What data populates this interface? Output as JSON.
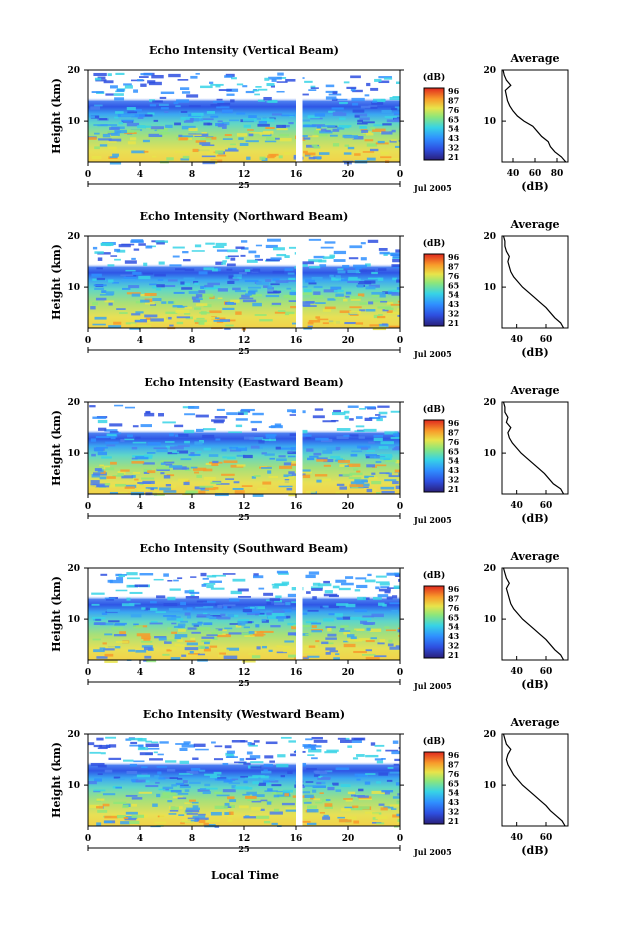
{
  "figure": {
    "bottom_xlabel": "Local Time",
    "date_label": "Jul 2005",
    "day_label": "25",
    "height_label": "Height (km)",
    "avg_title": "Average",
    "avg_xlabel": "(dB)",
    "cbar_title": "(dB)"
  },
  "chart_data": [
    {
      "type": "heatmap",
      "title": "Echo Intensity (Vertical Beam)",
      "xlabel": "Local Time",
      "ylabel": "Height (km)",
      "x_ticks": [
        "0",
        "4",
        "8",
        "12",
        "16",
        "20",
        "0"
      ],
      "y_ticks": [
        "10",
        "20"
      ],
      "xlim": [
        0,
        24
      ],
      "ylim": [
        2,
        20
      ],
      "data_gap": [
        16.0,
        16.5
      ],
      "colorbar": {
        "label": "(dB)",
        "ticks": [
          "96",
          "87",
          "76",
          "65",
          "54",
          "43",
          "32",
          "21"
        ],
        "range": [
          21,
          96
        ]
      },
      "profile": {
        "title": "Average",
        "xlabel": "(dB)",
        "x_ticks": [
          "40",
          "60",
          "80"
        ],
        "xlim": [
          30,
          90
        ],
        "y_ticks": [
          "10",
          "20"
        ],
        "ylim": [
          2,
          20
        ],
        "heights": [
          2,
          3,
          4,
          5,
          6,
          7,
          8,
          9,
          10,
          11,
          12,
          13,
          14,
          15,
          16,
          17,
          18,
          19,
          20
        ],
        "values": [
          88,
          84,
          78,
          74,
          72,
          66,
          62,
          58,
          50,
          44,
          40,
          37,
          35,
          34,
          33,
          38,
          34,
          32,
          31
        ]
      }
    },
    {
      "type": "heatmap",
      "title": "Echo Intensity (Northward Beam)",
      "xlabel": "Local Time",
      "ylabel": "Height (km)",
      "x_ticks": [
        "0",
        "4",
        "8",
        "12",
        "16",
        "20",
        "0"
      ],
      "y_ticks": [
        "10",
        "20"
      ],
      "xlim": [
        0,
        24
      ],
      "ylim": [
        2,
        20
      ],
      "data_gap": [
        16.0,
        16.5
      ],
      "colorbar": {
        "label": "(dB)",
        "ticks": [
          "96",
          "87",
          "76",
          "65",
          "54",
          "43",
          "32",
          "21"
        ],
        "range": [
          21,
          96
        ]
      },
      "profile": {
        "title": "Average",
        "xlabel": "(dB)",
        "x_ticks": [
          "40",
          "60"
        ],
        "xlim": [
          30,
          75
        ],
        "y_ticks": [
          "10",
          "20"
        ],
        "ylim": [
          2,
          20
        ],
        "heights": [
          2,
          3,
          4,
          5,
          6,
          7,
          8,
          9,
          10,
          11,
          12,
          13,
          14,
          15,
          16,
          17,
          18,
          19,
          20
        ],
        "values": [
          72,
          70,
          66,
          63,
          60,
          56,
          52,
          48,
          44,
          41,
          38,
          36,
          35,
          34,
          35,
          33,
          32,
          32,
          31
        ]
      }
    },
    {
      "type": "heatmap",
      "title": "Echo Intensity (Eastward Beam)",
      "xlabel": "Local Time",
      "ylabel": "Height (km)",
      "x_ticks": [
        "0",
        "4",
        "8",
        "12",
        "16",
        "20",
        "0"
      ],
      "y_ticks": [
        "10",
        "20"
      ],
      "xlim": [
        0,
        24
      ],
      "ylim": [
        2,
        20
      ],
      "data_gap": [
        16.0,
        16.5
      ],
      "colorbar": {
        "label": "(dB)",
        "ticks": [
          "96",
          "87",
          "76",
          "65",
          "54",
          "43",
          "32",
          "21"
        ],
        "range": [
          21,
          96
        ]
      },
      "profile": {
        "title": "Average",
        "xlabel": "(dB)",
        "x_ticks": [
          "40",
          "60"
        ],
        "xlim": [
          30,
          75
        ],
        "y_ticks": [
          "10",
          "20"
        ],
        "ylim": [
          2,
          20
        ],
        "heights": [
          2,
          3,
          4,
          5,
          6,
          7,
          8,
          9,
          10,
          11,
          12,
          13,
          14,
          15,
          16,
          17,
          18,
          19,
          20
        ],
        "values": [
          72,
          70,
          65,
          62,
          59,
          55,
          51,
          47,
          43,
          40,
          37,
          35,
          34,
          36,
          33,
          34,
          32,
          32,
          31
        ]
      }
    },
    {
      "type": "heatmap",
      "title": "Echo Intensity (Southward Beam)",
      "xlabel": "Local Time",
      "ylabel": "Height (km)",
      "x_ticks": [
        "0",
        "4",
        "8",
        "12",
        "16",
        "20",
        "0"
      ],
      "y_ticks": [
        "10",
        "20"
      ],
      "xlim": [
        0,
        24
      ],
      "ylim": [
        2,
        20
      ],
      "data_gap": [
        16.0,
        16.5
      ],
      "colorbar": {
        "label": "(dB)",
        "ticks": [
          "96",
          "87",
          "76",
          "65",
          "54",
          "43",
          "32",
          "21"
        ],
        "range": [
          21,
          96
        ]
      },
      "profile": {
        "title": "Average",
        "xlabel": "(dB)",
        "x_ticks": [
          "40",
          "60"
        ],
        "xlim": [
          30,
          75
        ],
        "y_ticks": [
          "10",
          "20"
        ],
        "ylim": [
          2,
          20
        ],
        "heights": [
          2,
          3,
          4,
          5,
          6,
          7,
          8,
          9,
          10,
          11,
          12,
          13,
          14,
          15,
          16,
          17,
          18,
          19,
          20
        ],
        "values": [
          72,
          70,
          66,
          63,
          60,
          56,
          52,
          48,
          44,
          41,
          38,
          36,
          35,
          34,
          33,
          35,
          33,
          32,
          31
        ]
      }
    },
    {
      "type": "heatmap",
      "title": "Echo Intensity (Westward Beam)",
      "xlabel": "Local Time",
      "ylabel": "Height (km)",
      "x_ticks": [
        "0",
        "4",
        "8",
        "12",
        "16",
        "20",
        "0"
      ],
      "y_ticks": [
        "10",
        "20"
      ],
      "xlim": [
        0,
        24
      ],
      "ylim": [
        2,
        20
      ],
      "data_gap": [
        16.0,
        16.5
      ],
      "colorbar": {
        "label": "(dB)",
        "ticks": [
          "96",
          "87",
          "76",
          "65",
          "54",
          "43",
          "32",
          "21"
        ],
        "range": [
          21,
          96
        ]
      },
      "profile": {
        "title": "Average",
        "xlabel": "(dB)",
        "x_ticks": [
          "40",
          "60"
        ],
        "xlim": [
          30,
          75
        ],
        "y_ticks": [
          "10",
          "20"
        ],
        "ylim": [
          2,
          20
        ],
        "heights": [
          2,
          3,
          4,
          5,
          6,
          7,
          8,
          9,
          10,
          11,
          12,
          13,
          14,
          15,
          16,
          17,
          18,
          19,
          20
        ],
        "values": [
          73,
          71,
          67,
          63,
          60,
          56,
          52,
          48,
          44,
          41,
          38,
          36,
          34,
          33,
          34,
          36,
          33,
          32,
          31
        ]
      }
    }
  ]
}
